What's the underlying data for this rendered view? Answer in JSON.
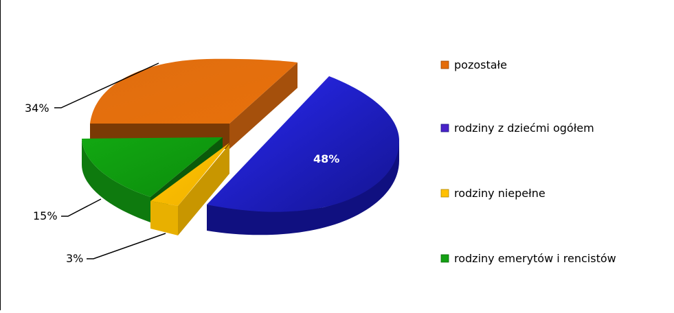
{
  "chart_data": {
    "type": "pie",
    "style": "3d-exploded",
    "categories": [
      "pozostałe",
      "rodziny z dziećmi ogółem",
      "rodziny niepełne",
      "rodziny emerytów i rencistów"
    ],
    "values": [
      34,
      48,
      3,
      15
    ],
    "labels": [
      "34%",
      "48%",
      "3%",
      "15%"
    ],
    "colors": [
      "#E46C0A",
      "#2B2BC8",
      "#FFC000",
      "#14A014"
    ],
    "legend": {
      "position": "right",
      "entries": [
        "pozostałe",
        "rodziny z dziećmi ogółem",
        "rodziny niepełne",
        "rodziny emerytów i rencistów"
      ]
    }
  }
}
